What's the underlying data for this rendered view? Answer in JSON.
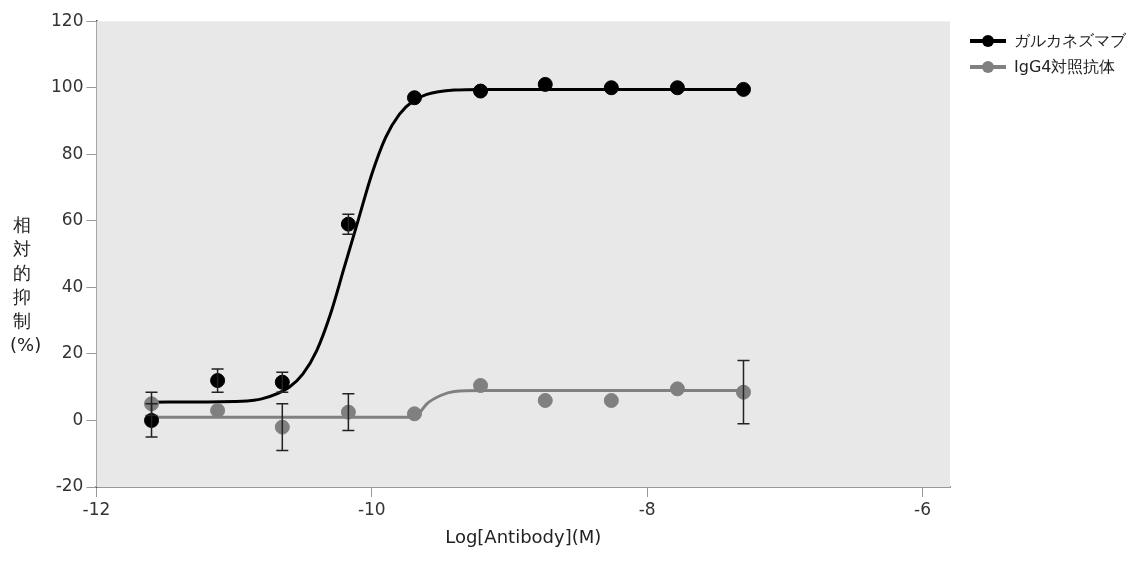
{
  "chart_data": {
    "type": "scatter",
    "xlabel": "Log[Antibody](M)",
    "ylabel": "相対的抑制(%)",
    "xlim": [
      -12,
      -5.8
    ],
    "xticks": [
      -12,
      -10,
      -8,
      -6
    ],
    "ylim": [
      -20,
      120
    ],
    "yticks": [
      -20,
      0,
      20,
      40,
      60,
      80,
      100,
      120
    ],
    "grid": false,
    "legend": "top right",
    "marker": "circle",
    "series": [
      {
        "name": "ガルカネズマブ",
        "color": "#000000",
        "type": "scatter",
        "x": [
          -11.6,
          -11.12,
          -10.65,
          -10.17,
          -9.69,
          -9.21,
          -8.74,
          -8.26,
          -7.78,
          -7.3
        ],
        "values": [
          0,
          12,
          11.5,
          59,
          97,
          99,
          101,
          100,
          100,
          99.5
        ],
        "errors": [
          5,
          3.5,
          3,
          3,
          null,
          null,
          null,
          null,
          null,
          null
        ]
      },
      {
        "name": "IgG4対照抗体",
        "color": "#808080",
        "type": "scatter",
        "x": [
          -11.6,
          -11.12,
          -10.65,
          -10.17,
          -9.69,
          -9.21,
          -8.74,
          -8.26,
          -7.78,
          -7.3
        ],
        "values": [
          5,
          3,
          -2,
          2.5,
          2,
          10.5,
          6,
          6,
          9.5,
          8.5
        ],
        "errors": [
          3.5,
          null,
          7,
          5.5,
          null,
          null,
          null,
          null,
          null,
          9.5
        ]
      },
      {
        "color": "#000000",
        "type": "line",
        "marker": "none",
        "x": [
          -11.6,
          -11.0,
          -10.8,
          -10.6,
          -10.5,
          -10.4,
          -10.3,
          -10.2,
          -10.1,
          -10.0,
          -9.9,
          -9.8,
          -9.7,
          -9.6,
          -9.4,
          -9.2,
          -7.3
        ],
        "values": [
          5.5,
          5.7,
          6.5,
          10,
          14,
          21,
          32,
          46,
          60,
          74,
          85,
          92,
          96,
          98,
          99.3,
          99.5,
          99.5
        ]
      },
      {
        "color": "#808080",
        "type": "line",
        "marker": "none",
        "x": [
          -11.6,
          -9.7,
          -9.65,
          -9.6,
          -9.5,
          -9.4,
          -9.2,
          -7.3
        ],
        "values": [
          1,
          1,
          2.5,
          5,
          7.5,
          8.7,
          9,
          9
        ]
      }
    ]
  }
}
